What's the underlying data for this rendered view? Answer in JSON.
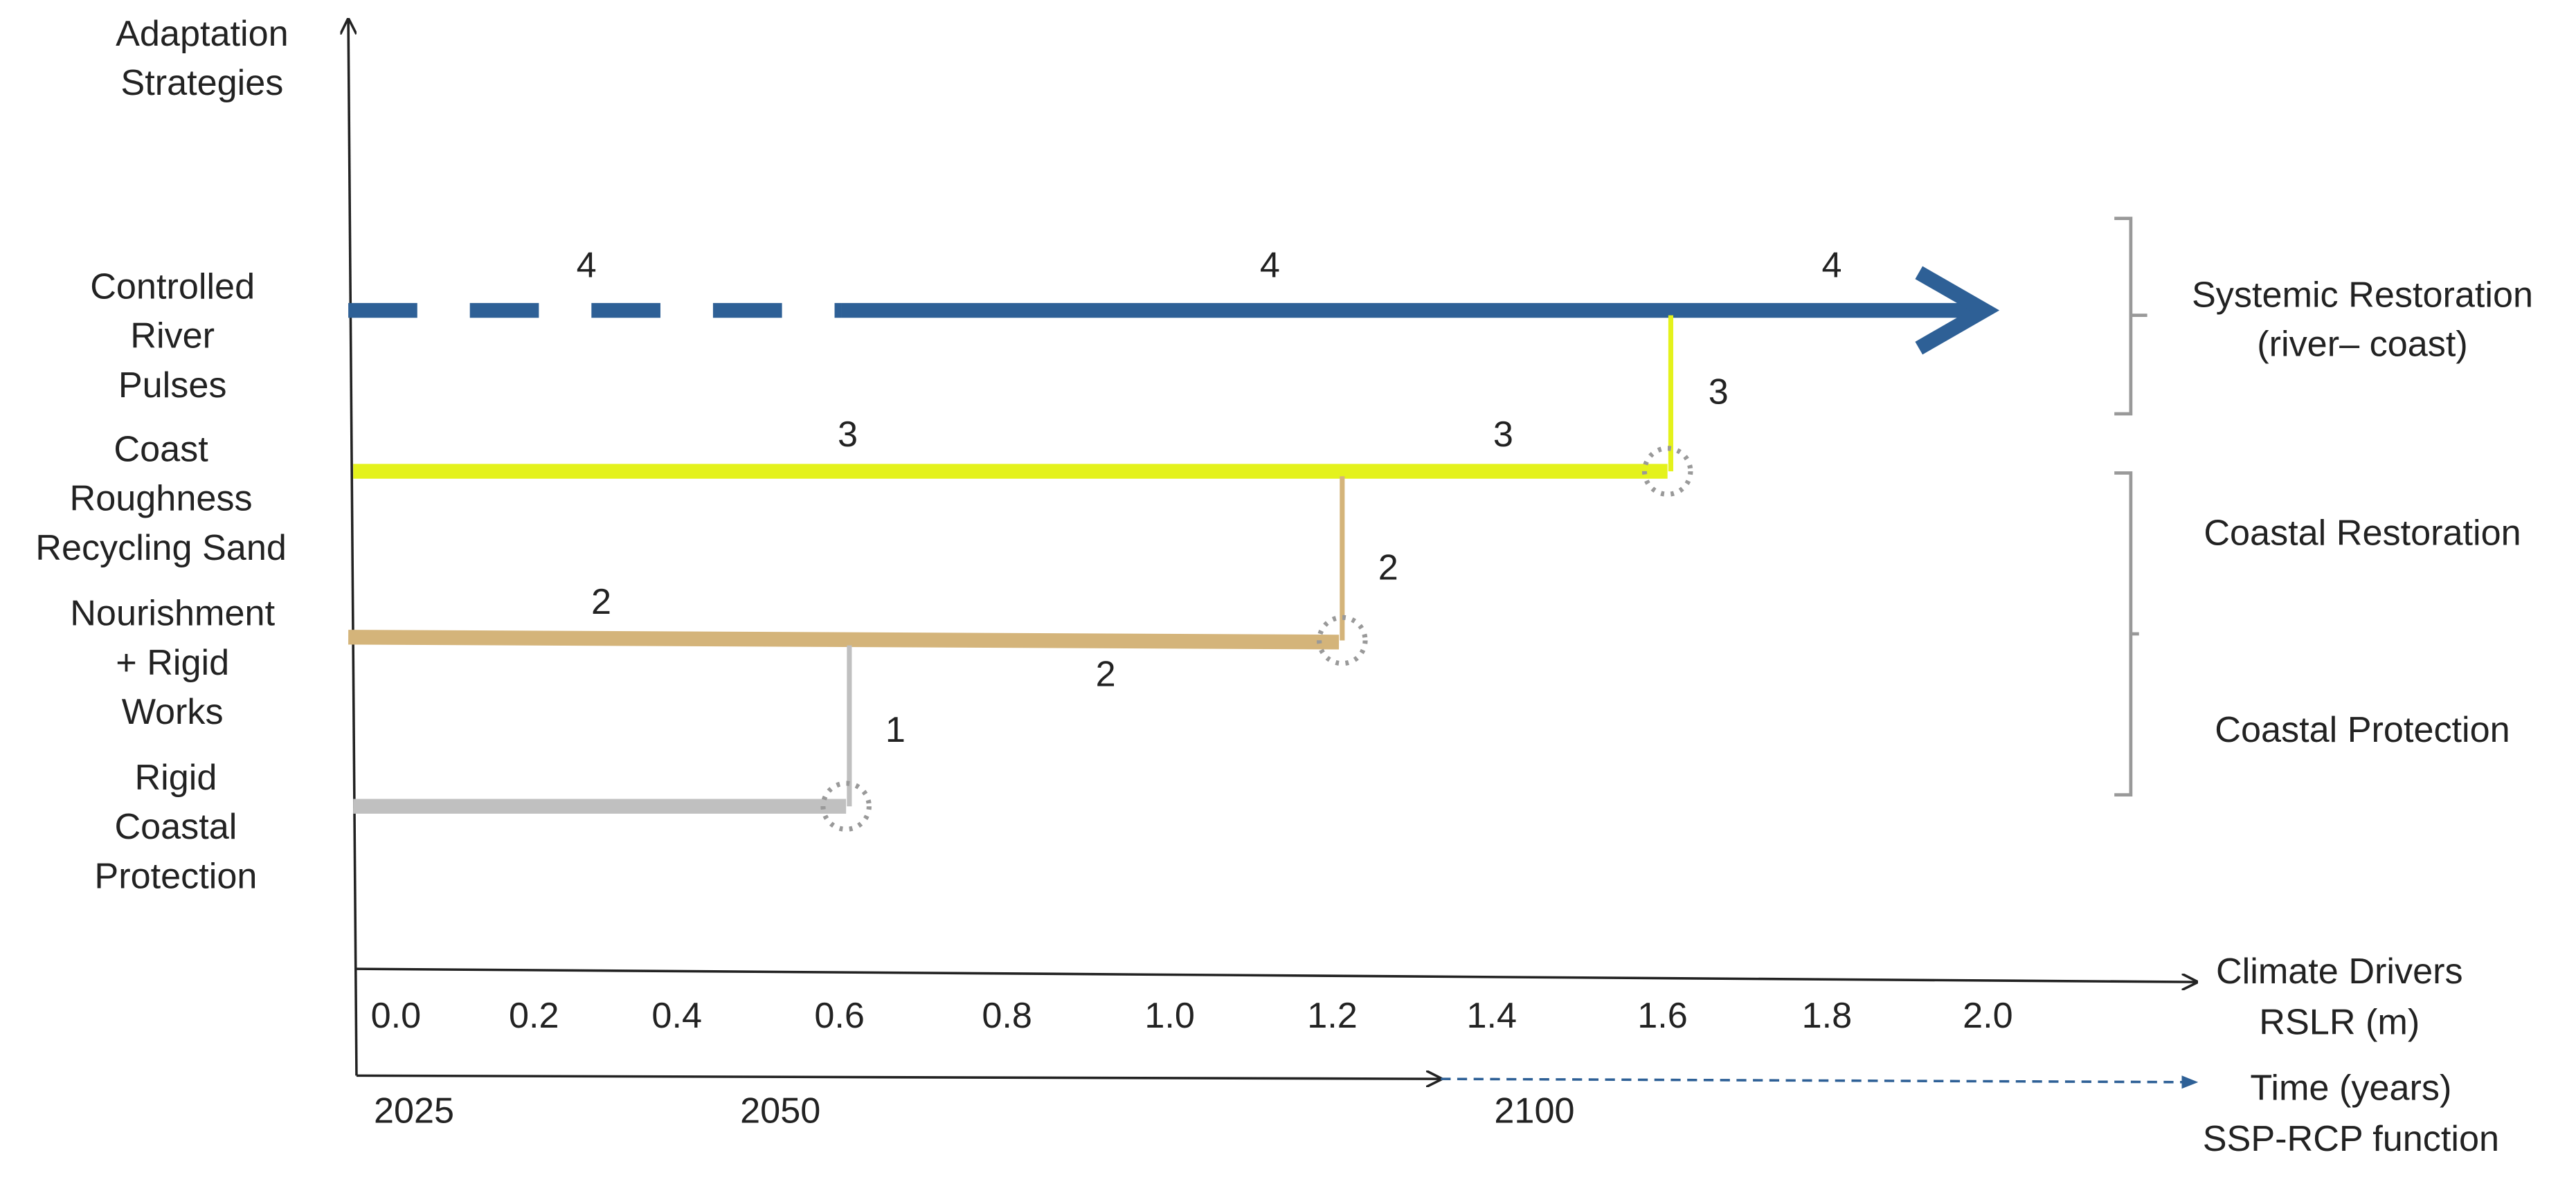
{
  "y_axis": {
    "title": [
      "Adaptation",
      "Strategies"
    ]
  },
  "strategies": [
    {
      "label": [
        "Controlled",
        "River",
        "Pulses"
      ],
      "path_labels": [
        "4",
        "4",
        "4"
      ]
    },
    {
      "label": [
        "Coast",
        "Roughness",
        "Recycling Sand"
      ],
      "path_labels": [
        "3",
        "3",
        "3"
      ]
    },
    {
      "label": [
        "Nourishment",
        "+ Rigid",
        "Works"
      ],
      "path_labels": [
        "2",
        "2",
        "2"
      ]
    },
    {
      "label": [
        "Rigid",
        "Coastal",
        "Protection"
      ],
      "path_labels": [
        "1"
      ]
    }
  ],
  "groups": [
    {
      "label": [
        "Systemic Restoration",
        "(river–  coast)"
      ]
    },
    {
      "label": [
        "Coastal Restoration"
      ]
    },
    {
      "label": [
        "Coastal Protection"
      ]
    }
  ],
  "rslr_axis": {
    "title": [
      "Climate Drivers",
      "RSLR (m)"
    ],
    "ticks": [
      "0.0",
      "0.2",
      "0.4",
      "0.6",
      "0.8",
      "1.0",
      "1.2",
      "1.4",
      "1.6",
      "1.8",
      "2.0"
    ]
  },
  "time_axis": {
    "title": [
      "Time (years)",
      "SSP-RCP function"
    ],
    "ticks": [
      "2025",
      "2050",
      "2100"
    ]
  }
}
